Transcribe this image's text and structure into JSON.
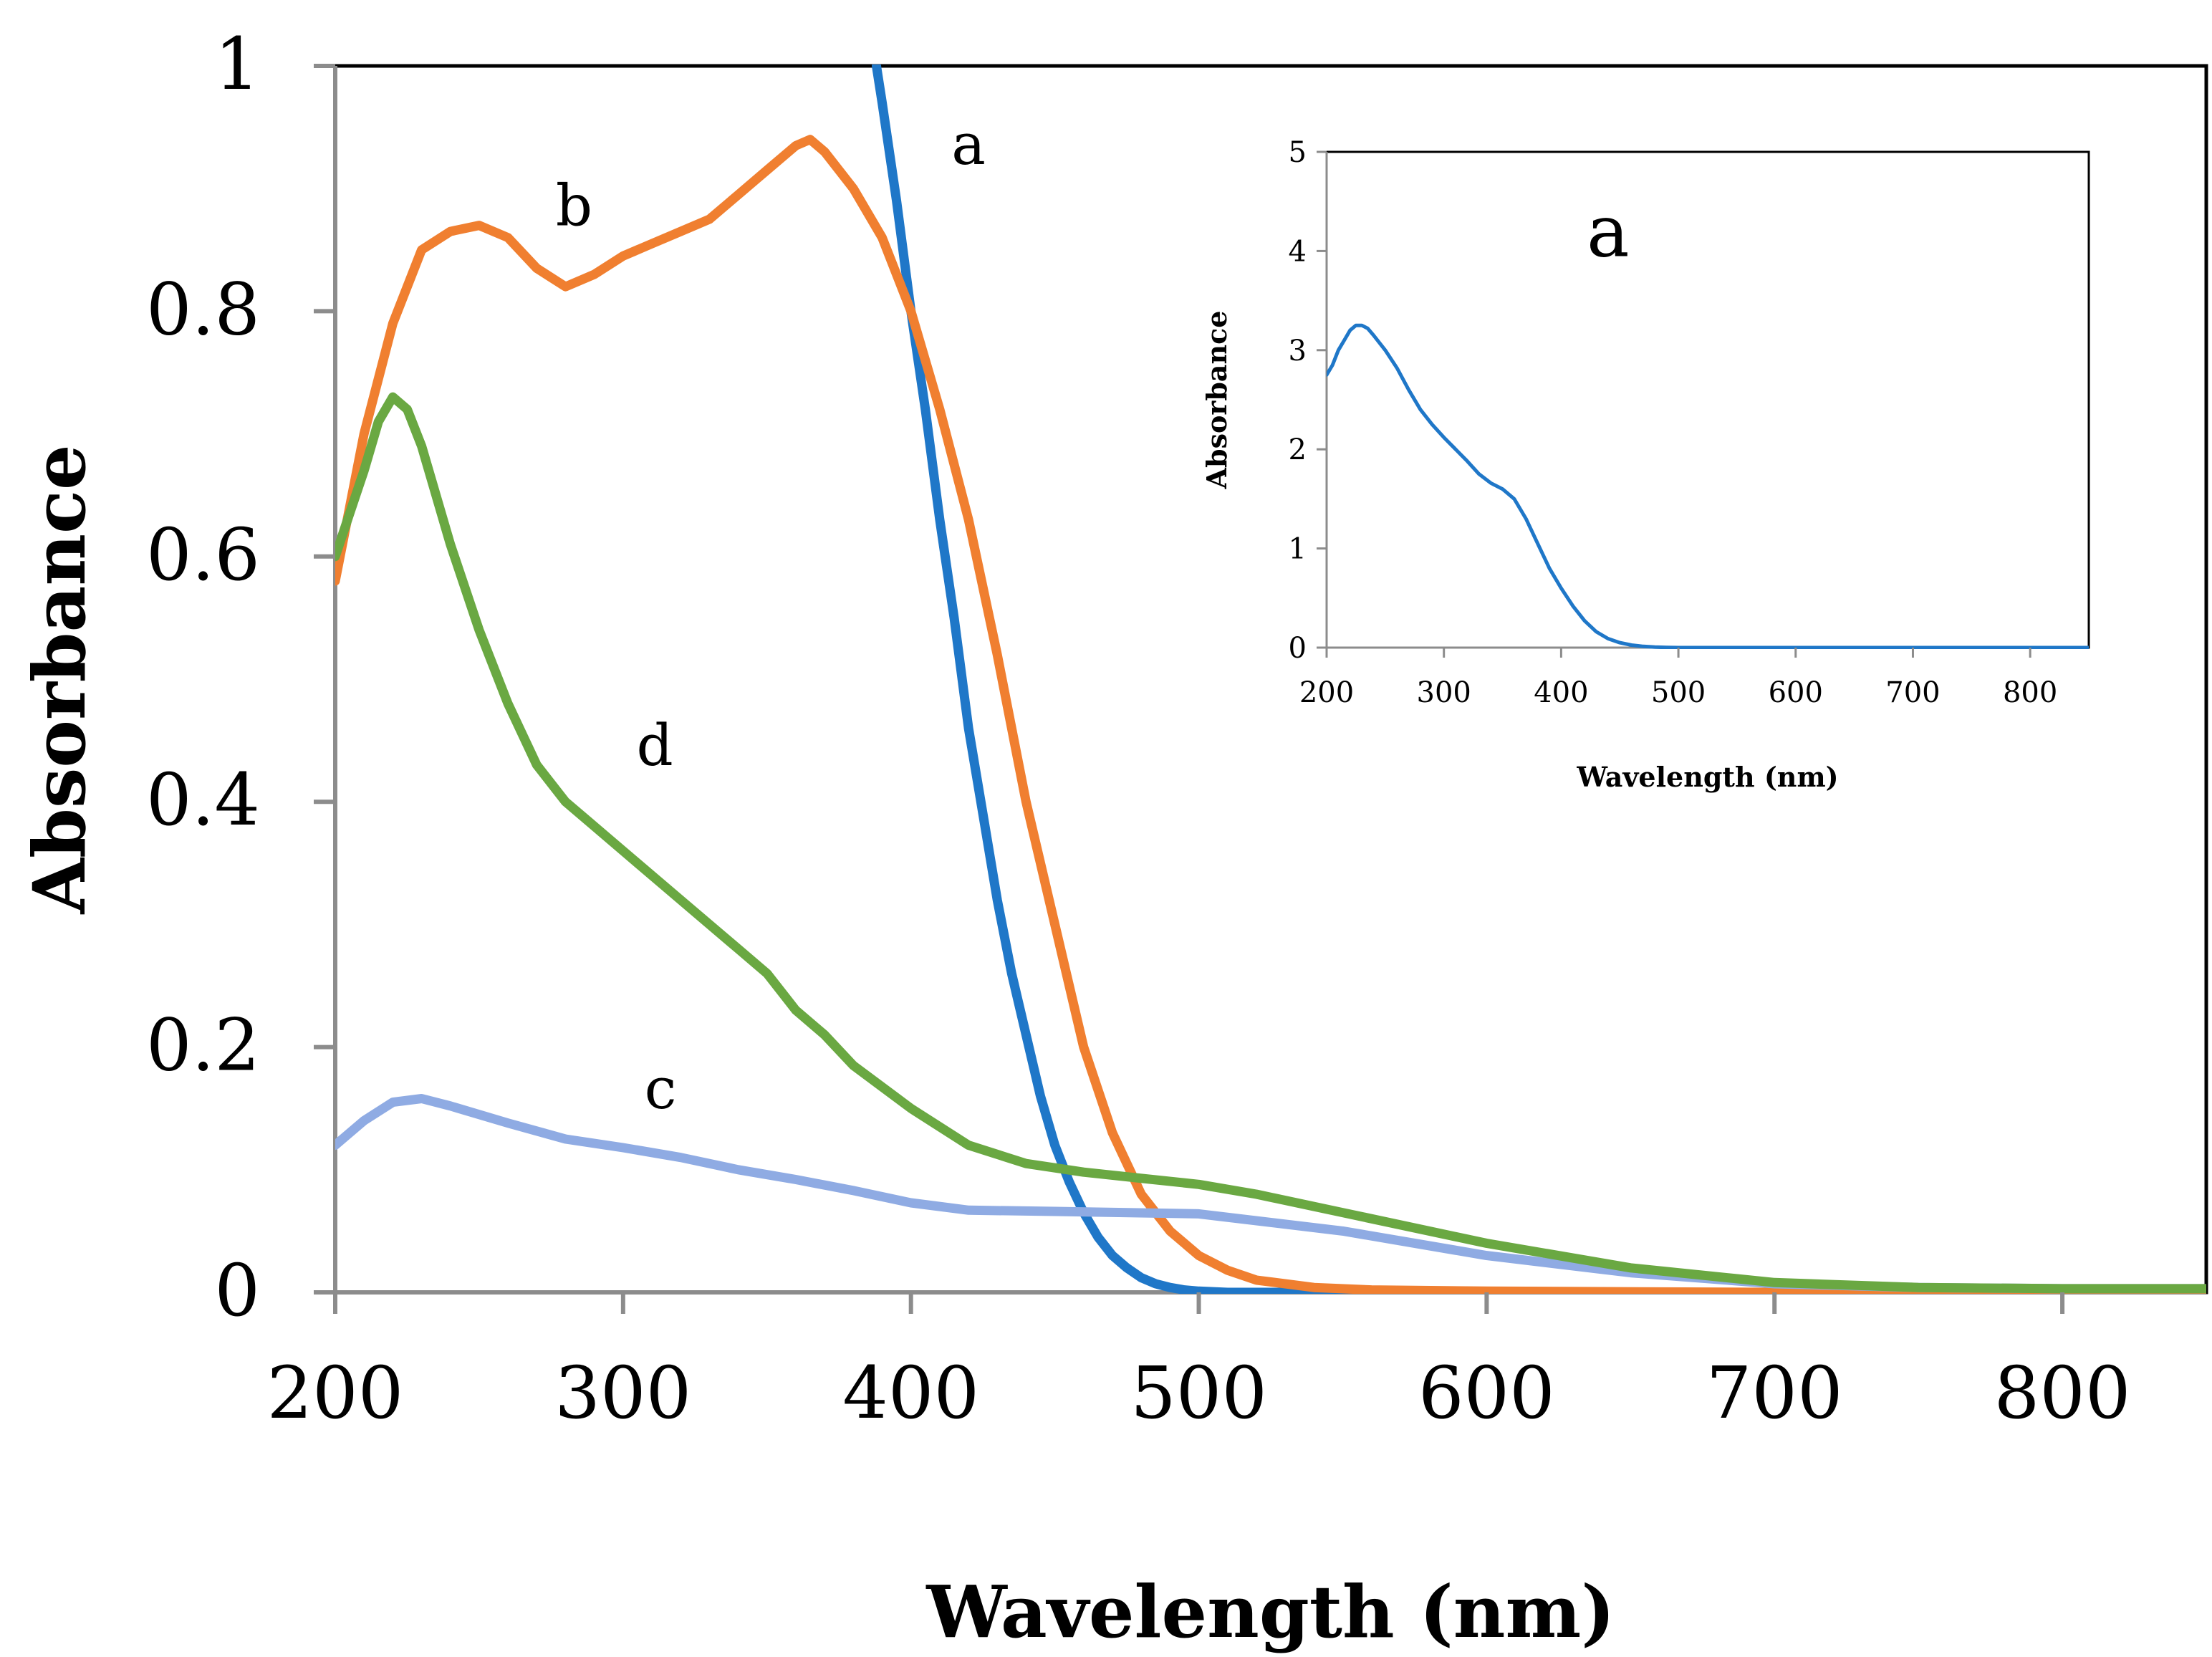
{
  "chart_data": [
    {
      "type": "line",
      "title": "",
      "xlabel": "Wavelength (nm)",
      "ylabel": "Absorbance",
      "xlim": [
        200,
        850
      ],
      "ylim": [
        0,
        1
      ],
      "x_ticks": [
        200,
        300,
        400,
        500,
        600,
        700,
        800
      ],
      "x_tick_labels": [
        "200",
        "300",
        "400",
        "500",
        "600",
        "700",
        "800"
      ],
      "y_ticks": [
        0,
        0.2,
        0.4,
        0.6,
        0.8,
        1
      ],
      "y_tick_labels": [
        "0",
        "0.2",
        "0.4",
        "0.6",
        "0.8",
        "1"
      ],
      "grid": false,
      "series": [
        {
          "name": "a",
          "color": "#1f77c8",
          "x": [
            388,
            390,
            395,
            400,
            405,
            410,
            415,
            420,
            425,
            430,
            435,
            440,
            445,
            450,
            455,
            460,
            465,
            470,
            475,
            480,
            485,
            490,
            495,
            500,
            510,
            520,
            530,
            560,
            600,
            700,
            850
          ],
          "y": [
            1.0,
            0.97,
            0.89,
            0.8,
            0.72,
            0.63,
            0.55,
            0.46,
            0.39,
            0.32,
            0.26,
            0.21,
            0.16,
            0.12,
            0.09,
            0.065,
            0.045,
            0.03,
            0.02,
            0.012,
            0.007,
            0.004,
            0.002,
            0.001,
            0.0,
            0.0,
            0.0,
            0.0,
            0.0,
            0.0,
            0.0
          ]
        },
        {
          "name": "b",
          "color": "#f07f30",
          "x": [
            200,
            210,
            220,
            230,
            240,
            250,
            260,
            270,
            280,
            290,
            300,
            310,
            320,
            330,
            340,
            350,
            360,
            365,
            370,
            380,
            390,
            400,
            410,
            420,
            430,
            440,
            450,
            460,
            470,
            480,
            490,
            500,
            510,
            520,
            540,
            560,
            600,
            700,
            850
          ],
          "y": [
            0.58,
            0.7,
            0.79,
            0.85,
            0.865,
            0.87,
            0.86,
            0.835,
            0.82,
            0.83,
            0.845,
            0.855,
            0.865,
            0.875,
            0.895,
            0.915,
            0.935,
            0.94,
            0.93,
            0.9,
            0.86,
            0.8,
            0.72,
            0.63,
            0.52,
            0.4,
            0.3,
            0.2,
            0.13,
            0.08,
            0.05,
            0.03,
            0.018,
            0.01,
            0.004,
            0.002,
            0.001,
            0.0,
            0.0
          ]
        },
        {
          "name": "c",
          "color": "#8fabe3",
          "x": [
            200,
            210,
            220,
            230,
            240,
            260,
            280,
            300,
            320,
            340,
            360,
            380,
            400,
            420,
            450,
            500,
            550,
            600,
            650,
            700,
            750,
            800,
            850
          ],
          "y": [
            0.12,
            0.14,
            0.155,
            0.158,
            0.152,
            0.138,
            0.125,
            0.118,
            0.11,
            0.1,
            0.092,
            0.083,
            0.073,
            0.067,
            0.066,
            0.064,
            0.05,
            0.03,
            0.016,
            0.007,
            0.004,
            0.003,
            0.003
          ]
        },
        {
          "name": "d",
          "color": "#6aa842",
          "x": [
            200,
            210,
            215,
            220,
            225,
            230,
            240,
            250,
            260,
            270,
            280,
            290,
            300,
            320,
            340,
            350,
            360,
            370,
            380,
            400,
            420,
            440,
            460,
            480,
            500,
            520,
            550,
            600,
            650,
            700,
            750,
            800,
            850
          ],
          "y": [
            0.6,
            0.67,
            0.71,
            0.73,
            0.72,
            0.69,
            0.61,
            0.54,
            0.48,
            0.43,
            0.4,
            0.38,
            0.36,
            0.32,
            0.28,
            0.26,
            0.23,
            0.21,
            0.185,
            0.15,
            0.12,
            0.105,
            0.098,
            0.093,
            0.088,
            0.08,
            0.065,
            0.04,
            0.02,
            0.008,
            0.004,
            0.003,
            0.003
          ]
        }
      ],
      "annotations": [
        {
          "text": "a",
          "x": 420,
          "y": 0.92
        },
        {
          "text": "b",
          "x": 283,
          "y": 0.87
        },
        {
          "text": "d",
          "x": 311,
          "y": 0.43
        },
        {
          "text": "c",
          "x": 313,
          "y": 0.15
        }
      ]
    },
    {
      "type": "line",
      "title": "",
      "xlabel": "Wavelength (nm)",
      "ylabel": "Absorbance",
      "xlim": [
        200,
        850
      ],
      "ylim": [
        0,
        5
      ],
      "x_ticks": [
        200,
        300,
        400,
        500,
        600,
        700,
        800
      ],
      "x_tick_labels": [
        "200",
        "300",
        "400",
        "500",
        "600",
        "700",
        "800"
      ],
      "y_ticks": [
        0,
        1,
        2,
        3,
        4,
        5
      ],
      "y_tick_labels": [
        "0",
        "1",
        "2",
        "3",
        "4",
        "5"
      ],
      "grid": false,
      "series": [
        {
          "name": "a",
          "color": "#1f77c8",
          "x": [
            200,
            205,
            210,
            215,
            220,
            225,
            230,
            235,
            240,
            250,
            260,
            270,
            280,
            290,
            300,
            310,
            320,
            330,
            340,
            350,
            360,
            370,
            380,
            390,
            400,
            410,
            420,
            430,
            440,
            450,
            460,
            470,
            480,
            490,
            500,
            550,
            600,
            700,
            850
          ],
          "y": [
            2.75,
            2.85,
            3.0,
            3.1,
            3.2,
            3.25,
            3.25,
            3.22,
            3.15,
            3.0,
            2.82,
            2.6,
            2.4,
            2.25,
            2.12,
            2.0,
            1.88,
            1.75,
            1.66,
            1.6,
            1.5,
            1.3,
            1.05,
            0.8,
            0.6,
            0.42,
            0.27,
            0.16,
            0.09,
            0.05,
            0.025,
            0.012,
            0.005,
            0.002,
            0.0,
            0.0,
            0.0,
            0.0,
            0.0
          ]
        }
      ],
      "annotations": [
        {
          "text": "a",
          "x": 440,
          "y": 3.95
        }
      ]
    }
  ]
}
